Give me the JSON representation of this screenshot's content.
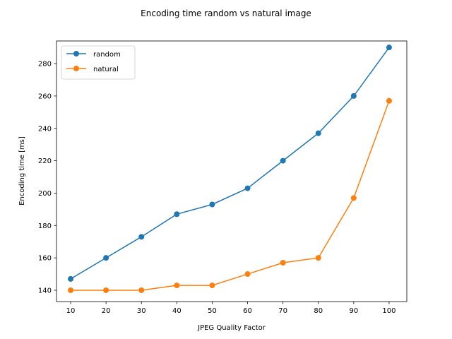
{
  "chart_data": {
    "type": "line",
    "title": "Encoding time random vs natural image",
    "xlabel": "JPEG Quality Factor",
    "ylabel": "Encoding time [ms]",
    "x": [
      10,
      20,
      30,
      40,
      50,
      60,
      70,
      80,
      90,
      100
    ],
    "xlim": [
      6,
      105
    ],
    "ylim": [
      133,
      294
    ],
    "xticks": [
      10,
      20,
      30,
      40,
      50,
      60,
      70,
      80,
      90,
      100
    ],
    "yticks": [
      140,
      160,
      180,
      200,
      220,
      240,
      260,
      280
    ],
    "grid": false,
    "legend": "top-left",
    "series": [
      {
        "name": "random",
        "color": "#1f77b4",
        "values": [
          147,
          160,
          173,
          187,
          193,
          203,
          220,
          237,
          260,
          290
        ]
      },
      {
        "name": "natural",
        "color": "#ff7f0e",
        "values": [
          140,
          140,
          140,
          143,
          143,
          150,
          157,
          160,
          197,
          257
        ]
      }
    ]
  }
}
